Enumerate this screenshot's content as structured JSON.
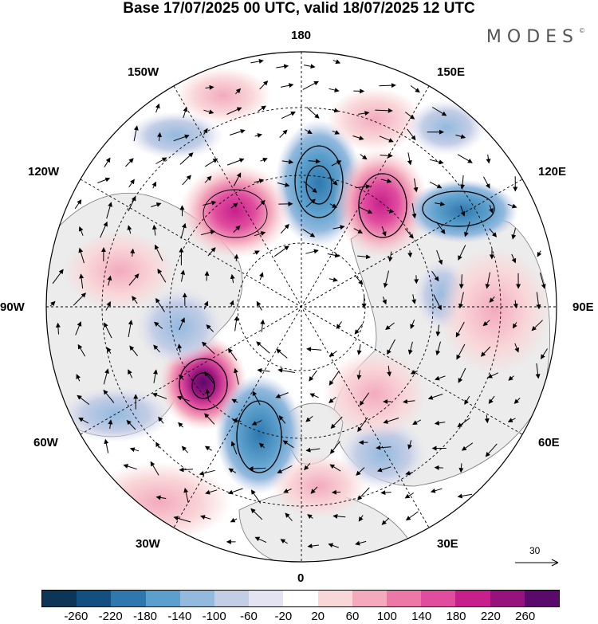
{
  "title": "Base 17/07/2025 00 UTC, valid 18/07/2025 12 UTC",
  "logo": "MODES",
  "longitude_labels": {
    "lon_180": "180",
    "lon_150e": "150E",
    "lon_120e": "120E",
    "lon_90e": "90E",
    "lon_60e": "60E",
    "lon_30e": "30E",
    "lon_0": "0",
    "lon_30w": "30W",
    "lon_60w": "60W",
    "lon_90w": "90W",
    "lon_120w": "120W",
    "lon_150w": "150W"
  },
  "reference_vector": "30",
  "colorbar": {
    "colors": [
      "#0d3557",
      "#14507f",
      "#2e78ae",
      "#5b9fcc",
      "#93b9de",
      "#c3cde6",
      "#e4e3f1",
      "#ffffff",
      "#f9d6d8",
      "#f3aabd",
      "#ec78a8",
      "#e04c9e",
      "#c71f8b",
      "#96127d",
      "#5a0a6a"
    ],
    "ticks": [
      "-260",
      "-220",
      "-180",
      "-140",
      "-100",
      "-60",
      "-20",
      "20",
      "60",
      "100",
      "140",
      "180",
      "220",
      "260"
    ]
  }
}
